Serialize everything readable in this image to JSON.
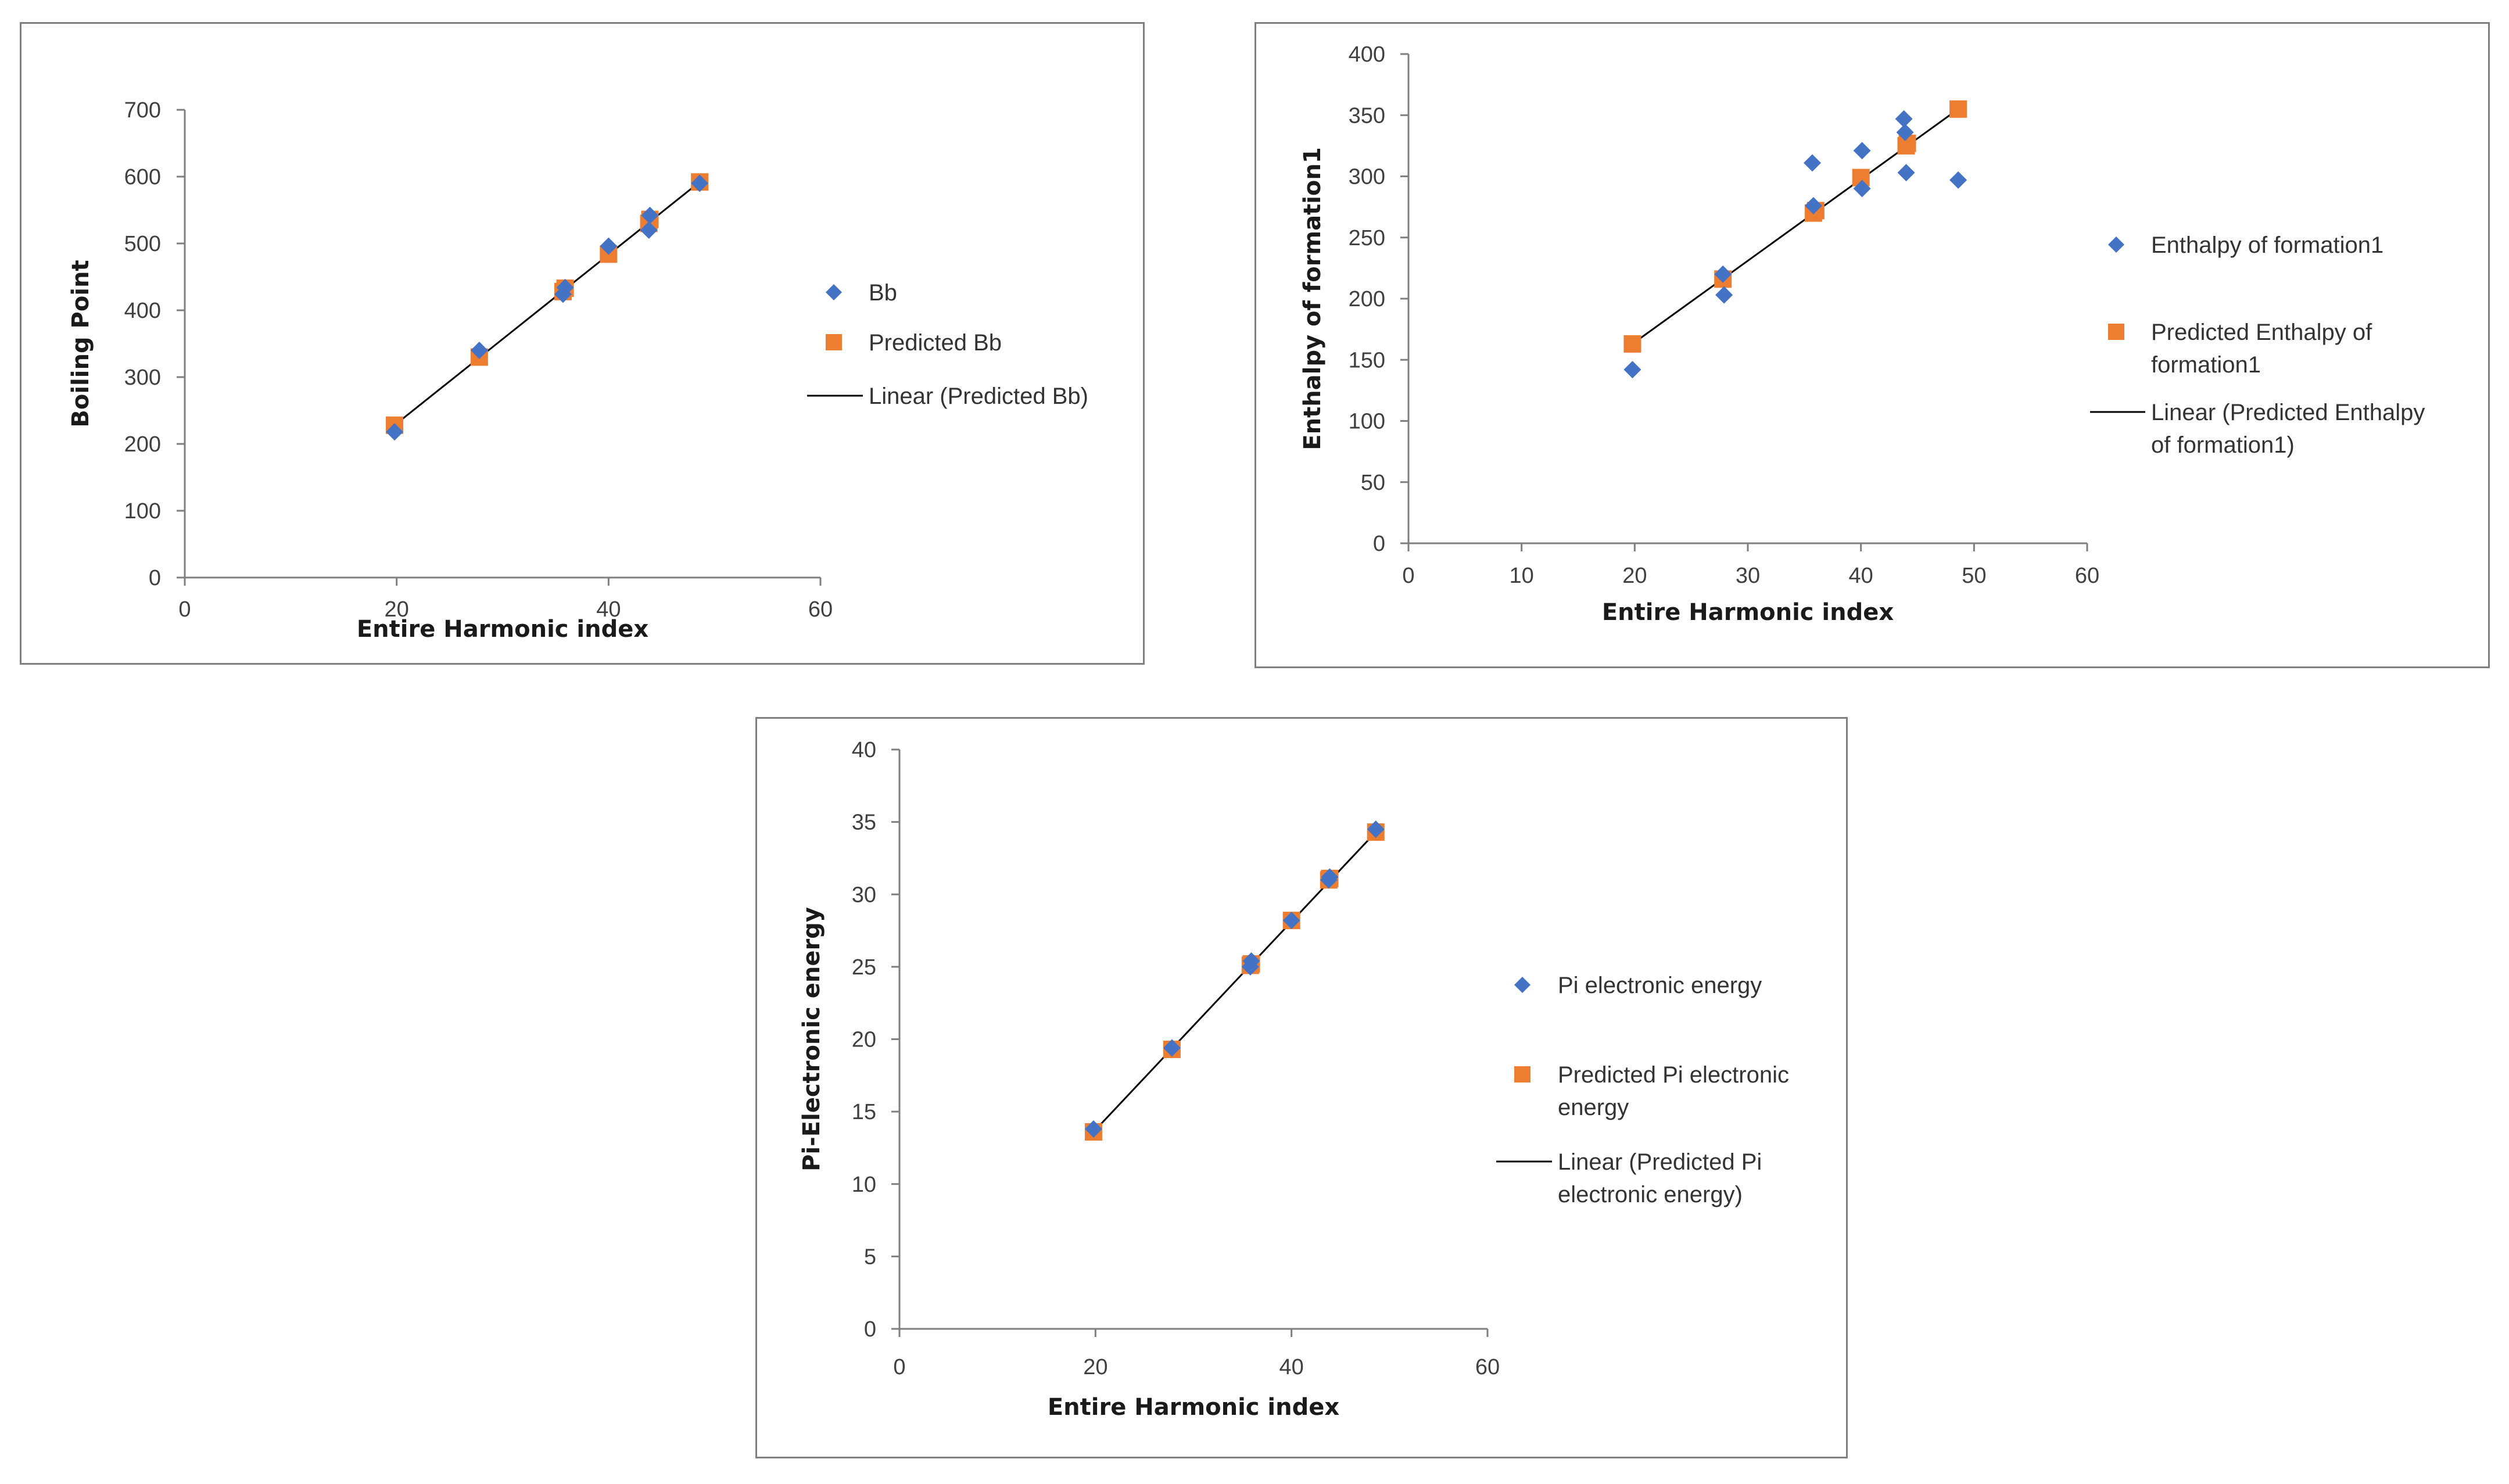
{
  "colors": {
    "diamond": "#4472C4",
    "square": "#ED7D31",
    "line": "#000000",
    "axis": "#7f7f7f"
  },
  "chart_data": [
    {
      "type": "scatter",
      "title": "",
      "xlabel": "Entire Harmonic index",
      "ylabel": "Boiling Point",
      "xlim": [
        0,
        60
      ],
      "ylim": [
        0,
        700
      ],
      "xticks": [
        0,
        20,
        40,
        60
      ],
      "yticks": [
        0,
        100,
        200,
        300,
        400,
        500,
        600,
        700
      ],
      "legend_position": "right",
      "series": [
        {
          "name": "Bb",
          "marker": "diamond",
          "x": [
            19.8,
            27.8,
            35.7,
            35.9,
            40.0,
            43.8,
            43.9,
            48.6
          ],
          "y": [
            218,
            340,
            424,
            434,
            496,
            520,
            542,
            590
          ]
        },
        {
          "name": "Predicted Bb",
          "marker": "square",
          "x": [
            19.8,
            27.8,
            35.7,
            35.9,
            40.0,
            43.8,
            43.9,
            48.6
          ],
          "y": [
            228,
            330,
            428,
            433,
            484,
            530,
            536,
            592
          ]
        },
        {
          "name": "Linear (Predicted Bb)",
          "marker": "line",
          "x": [
            19.8,
            48.6
          ],
          "y": [
            228,
            592
          ]
        }
      ]
    },
    {
      "type": "scatter",
      "title": "",
      "xlabel": "Entire Harmonic index",
      "ylabel": "Enthalpy of formation1",
      "xlim": [
        0,
        60
      ],
      "ylim": [
        0,
        400
      ],
      "xticks": [
        0,
        10,
        20,
        30,
        40,
        50,
        60
      ],
      "yticks": [
        0,
        50,
        100,
        150,
        200,
        250,
        300,
        350,
        400
      ],
      "legend_position": "right",
      "series": [
        {
          "name": "Enthalpy of formation1",
          "marker": "diamond",
          "x": [
            19.8,
            27.8,
            27.9,
            35.7,
            35.8,
            40.1,
            40.1,
            43.8,
            43.9,
            44.0,
            48.6
          ],
          "y": [
            142,
            220,
            203,
            311,
            276,
            321,
            290,
            347,
            336,
            303,
            297
          ]
        },
        {
          "name": "Predicted Enthalpy of formation1",
          "marker": "square",
          "x": [
            19.8,
            27.8,
            35.8,
            36.0,
            40.0,
            44.0,
            44.1,
            48.6
          ],
          "y": [
            163,
            216,
            270,
            272,
            299,
            325,
            327,
            355
          ]
        },
        {
          "name": "Linear (Predicted Enthalpy of formation1)",
          "marker": "line",
          "x": [
            19.8,
            48.6
          ],
          "y": [
            163,
            355
          ]
        }
      ]
    },
    {
      "type": "scatter",
      "title": "",
      "xlabel": "Entire Harmonic index",
      "ylabel": "Pi-Electronic energy",
      "xlim": [
        0,
        60
      ],
      "ylim": [
        0,
        40
      ],
      "xticks": [
        0,
        20,
        40,
        60
      ],
      "yticks": [
        0,
        5,
        10,
        15,
        20,
        25,
        30,
        35,
        40
      ],
      "legend_position": "right",
      "series": [
        {
          "name": "Pi electronic energy",
          "marker": "diamond",
          "x": [
            19.8,
            27.8,
            35.8,
            35.9,
            40.0,
            43.8,
            43.9,
            48.6
          ],
          "y": [
            13.8,
            19.4,
            25.0,
            25.4,
            28.2,
            31.0,
            31.2,
            34.5
          ]
        },
        {
          "name": "Predicted Pi electronic energy",
          "marker": "square",
          "x": [
            19.8,
            27.8,
            35.8,
            35.9,
            40.0,
            43.8,
            43.9,
            48.6
          ],
          "y": [
            13.6,
            19.3,
            25.1,
            25.2,
            28.2,
            31.0,
            31.1,
            34.3
          ]
        },
        {
          "name": "Linear (Predicted Pi electronic energy)",
          "marker": "line",
          "x": [
            19.8,
            48.6
          ],
          "y": [
            13.6,
            34.3
          ]
        }
      ]
    }
  ]
}
